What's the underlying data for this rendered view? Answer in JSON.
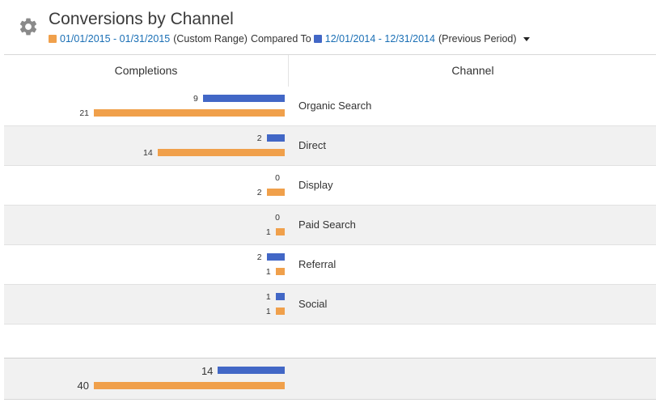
{
  "header": {
    "title": "Conversions by Channel",
    "current_range": "01/01/2015 - 01/31/2015",
    "current_range_label": "(Custom Range)",
    "compared_to": "Compared To",
    "previous_range": "12/01/2014 - 12/31/2014",
    "previous_range_label": "(Previous Period)"
  },
  "colors": {
    "current": "#f0a04b",
    "previous": "#4267c6",
    "link": "#1a6fb5"
  },
  "icons": {
    "settings": "gear-icon",
    "dropdown": "caret-down-icon"
  },
  "table": {
    "columns": [
      "Completions",
      "Channel"
    ],
    "max_value": 21,
    "rows": [
      {
        "channel": "Organic Search",
        "previous": "9",
        "current": "21"
      },
      {
        "channel": "Direct",
        "previous": "2",
        "current": "14"
      },
      {
        "channel": "Display",
        "previous": "0",
        "current": "2"
      },
      {
        "channel": "Paid Search",
        "previous": "0",
        "current": "1"
      },
      {
        "channel": "Referral",
        "previous": "2",
        "current": "1"
      },
      {
        "channel": "Social",
        "previous": "1",
        "current": "1"
      }
    ],
    "totals": {
      "previous": "14",
      "current": "40"
    }
  },
  "chart_data": {
    "type": "bar",
    "categories": [
      "Organic Search",
      "Direct",
      "Display",
      "Paid Search",
      "Referral",
      "Social"
    ],
    "series": [
      {
        "name": "12/01/2014 - 12/31/2014",
        "values": [
          9,
          2,
          0,
          0,
          2,
          1
        ]
      },
      {
        "name": "01/01/2015 - 01/31/2015",
        "values": [
          21,
          14,
          2,
          1,
          1,
          1
        ]
      }
    ],
    "totals": {
      "12/01/2014 - 12/31/2014": 14,
      "01/01/2015 - 01/31/2015": 40
    },
    "xlabel": "Completions",
    "ylabel": "Channel"
  }
}
